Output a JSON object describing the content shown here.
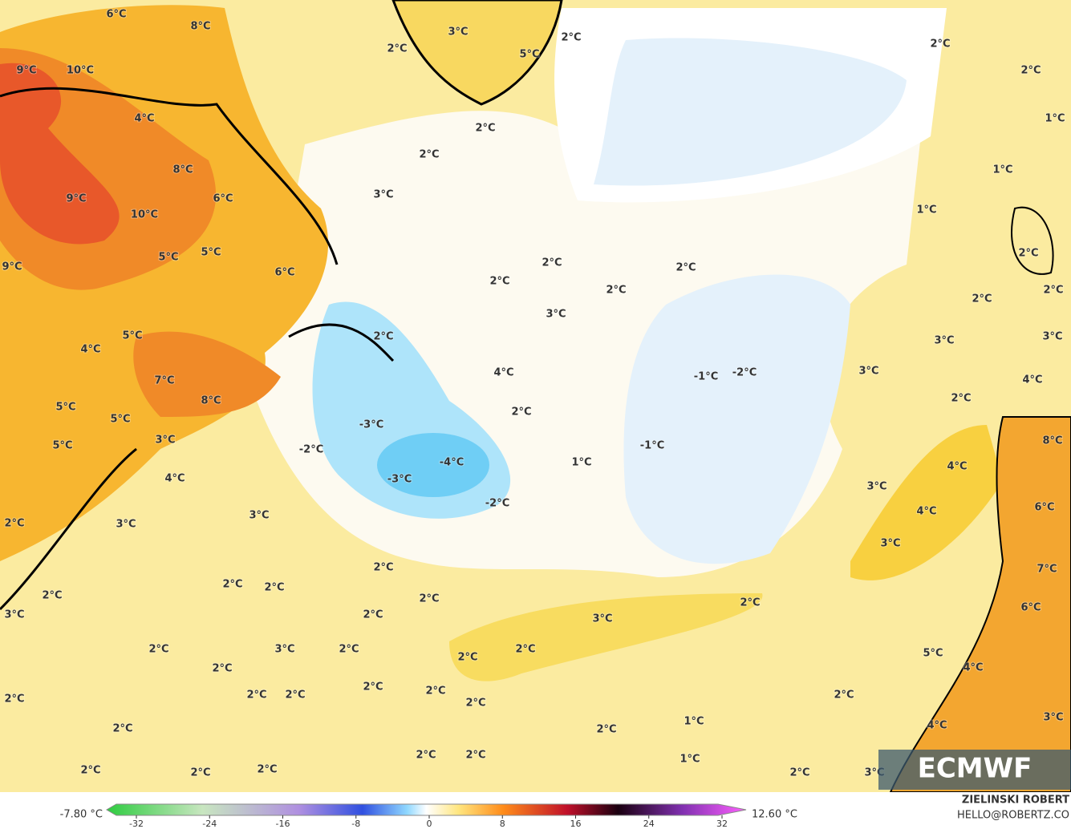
{
  "map": {
    "labels": [
      "6°C",
      "8°C",
      "9°C",
      "10°C",
      "4°C",
      "8°C",
      "9°C",
      "10°C",
      "6°C",
      "5°C",
      "5°C",
      "6°C",
      "9°C",
      "5°C",
      "4°C",
      "7°C",
      "8°C",
      "5°C",
      "5°C",
      "5°C",
      "3°C",
      "4°C",
      "3°C",
      "3°C",
      "2°C",
      "2°C",
      "3°C",
      "2°C",
      "2°C",
      "2°C",
      "2°C",
      "2°C",
      "2°C",
      "3°C",
      "2°C",
      "2°C",
      "2°C",
      "2°C",
      "2°C",
      "2°C",
      "2°C",
      "2°C",
      "2°C",
      "2°C",
      "2°C",
      "2°C",
      "2°C",
      "2°C",
      "2°C",
      "2°C",
      "3°C",
      "2°C",
      "2°C",
      "1°C",
      "1°C",
      "2°C",
      "3°C",
      "2°C",
      "5°C",
      "4°C",
      "4°C",
      "3°C",
      "3°C",
      "4°C",
      "3°C",
      "4°C",
      "8°C",
      "6°C",
      "7°C",
      "6°C",
      "2°C",
      "3°C",
      "4°C",
      "3°C",
      "3°C",
      "2°C",
      "2°C",
      "2°C",
      "1°C",
      "1°C",
      "1°C",
      "2°C",
      "2°C",
      "2°C",
      "5°C",
      "3°C",
      "2°C",
      "2°C",
      "2°C",
      "3°C",
      "2°C",
      "2°C",
      "2°C",
      "2°C",
      "3°C",
      "4°C",
      "2°C",
      "1°C",
      "-1°C",
      "-1°C",
      "-2°C",
      "-2°C",
      "-3°C",
      "-4°C",
      "-3°C",
      "-2°C",
      "2°C"
    ]
  },
  "colorbar": {
    "min_label": "-7.80 °C",
    "max_label": "12.60 °C",
    "ticks": [
      -32,
      -24,
      -16,
      -8,
      0,
      8,
      16,
      24,
      32
    ]
  },
  "credit": {
    "name": "ZIELINSKI ROBERT",
    "email": "HELLO@ROBERTZ.CO"
  },
  "logo": "ECMWF"
}
